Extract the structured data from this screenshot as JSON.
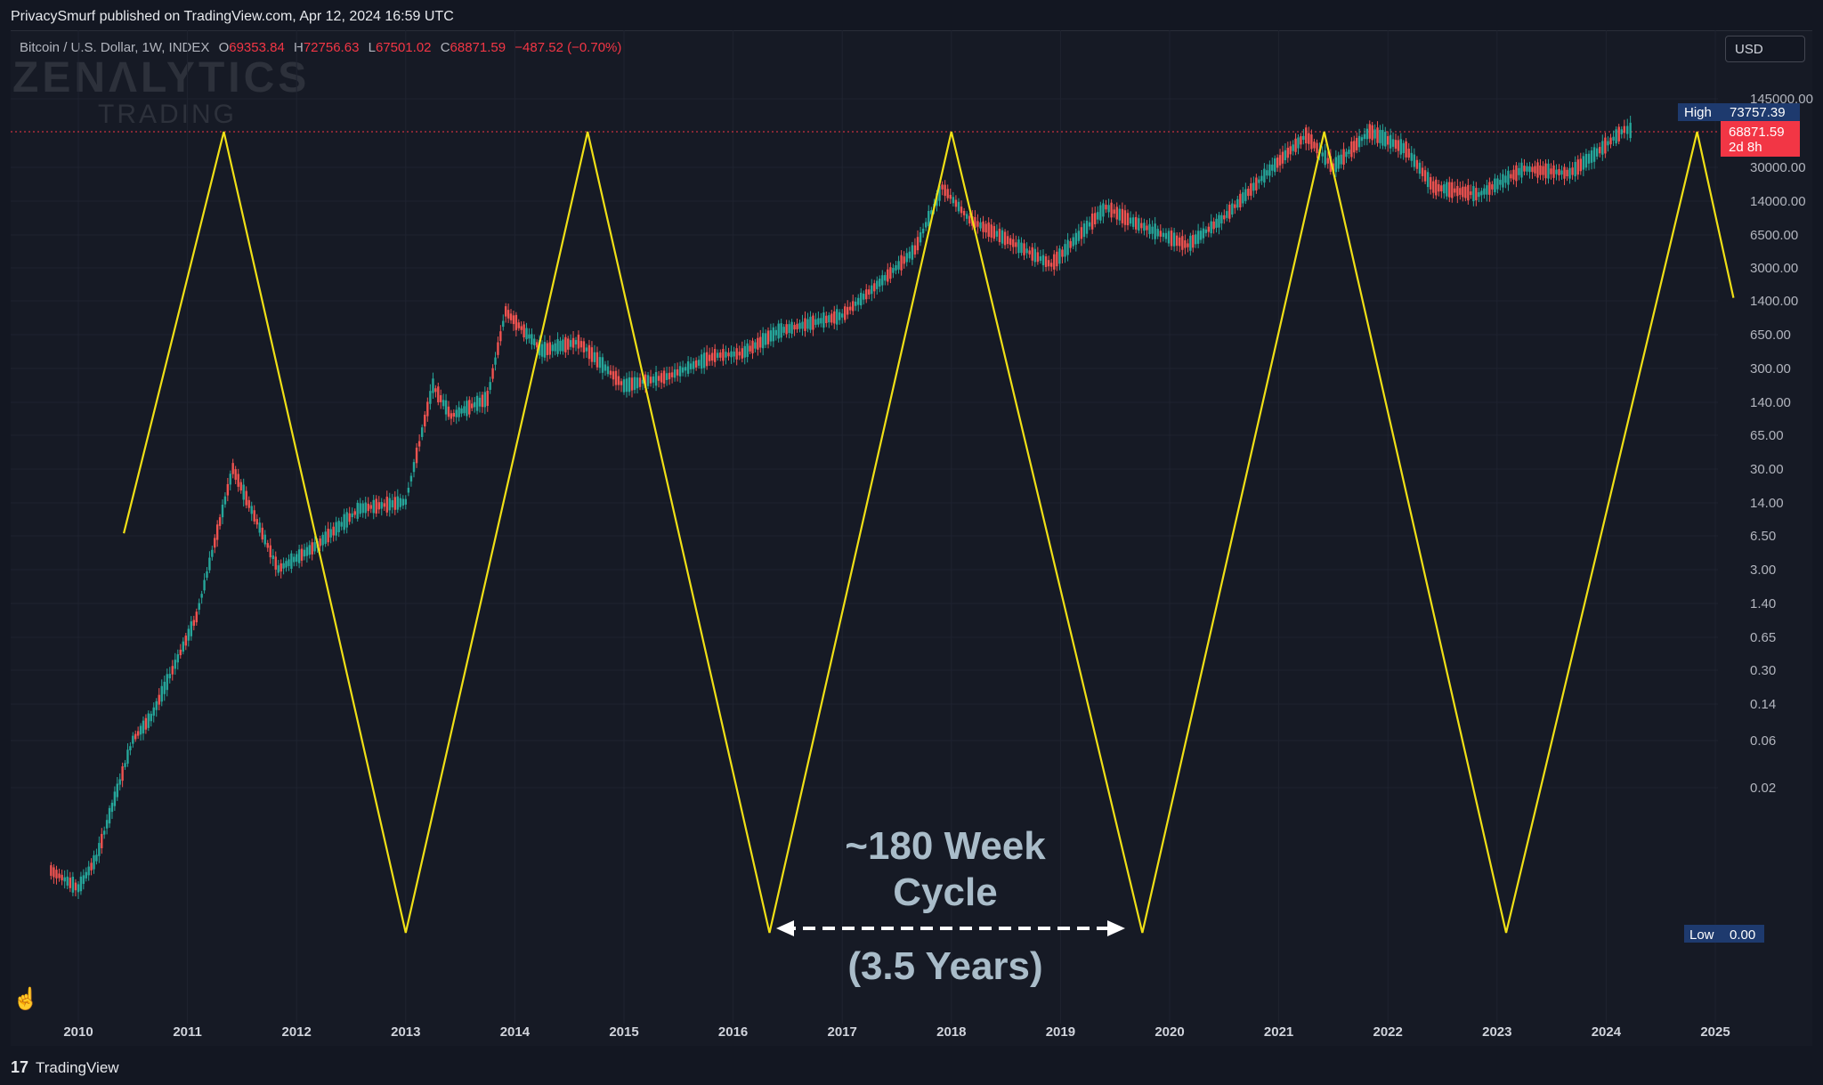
{
  "header": {
    "published": "PrivacySmurf published on TradingView.com, Apr 12, 2024 16:59 UTC"
  },
  "legend": {
    "symbol": "Bitcoin / U.S. Dollar, 1W, INDEX",
    "o_label": "O",
    "o_value": "69353.84",
    "h_label": "H",
    "h_value": "72756.63",
    "l_label": "L",
    "l_value": "67501.02",
    "c_label": "C",
    "c_value": "68871.59",
    "change": "−487.52 (−0.70%)"
  },
  "currency_button": "USD",
  "watermark": {
    "line1": "ZENΛLYTICS",
    "line2": "TRADING"
  },
  "price_axis": {
    "labels": [
      "145000.00",
      "30000.00",
      "14000.00",
      "6500.00",
      "3000.00",
      "1400.00",
      "650.00",
      "300.00",
      "140.00",
      "65.00",
      "30.00",
      "14.00",
      "6.50",
      "3.00",
      "1.40",
      "0.65",
      "0.30",
      "0.14",
      "0.06",
      "0.02"
    ],
    "high_label": "High",
    "high_value": "73757.39",
    "last_price": "68871.59",
    "countdown": "2d 8h",
    "low_label": "Low",
    "low_value": "0.00"
  },
  "annotations": {
    "cycle_title_line1": "~180 Week",
    "cycle_title_line2": "Cycle",
    "cycle_years": "(3.5 Years)"
  },
  "footer": {
    "logo": "17",
    "brand": "TradingView"
  },
  "colors": {
    "background": "#131722",
    "cycle_line": "#f0e016",
    "up": "#26a69a",
    "down": "#ef5350",
    "last_price_badge": "#f23645",
    "high_low_badge": "#1e3a6e",
    "annotation_text": "#a9bcc9"
  },
  "chart_data": {
    "type": "line",
    "yscale": "log",
    "x_axis_labels": [
      "2010",
      "2011",
      "2012",
      "2013",
      "2014",
      "2015",
      "2016",
      "2017",
      "2018",
      "2019",
      "2020",
      "2021",
      "2022",
      "2023",
      "2024",
      "2025"
    ],
    "series": [
      {
        "kind": "price",
        "x": [
          "2009-10",
          "2010-01",
          "2010-03",
          "2010-07",
          "2010-09",
          "2011-02",
          "2011-06",
          "2011-11",
          "2012-03",
          "2012-08",
          "2013-01",
          "2013-04",
          "2013-06",
          "2013-10",
          "2013-12",
          "2014-04",
          "2014-08",
          "2015-01",
          "2015-06",
          "2015-11",
          "2016-02",
          "2016-06",
          "2017-01",
          "2017-06",
          "2017-09",
          "2017-12",
          "2018-03",
          "2018-06",
          "2018-12",
          "2019-06",
          "2019-09",
          "2020-03",
          "2020-07",
          "2020-12",
          "2021-04",
          "2021-07",
          "2021-11",
          "2022-03",
          "2022-06",
          "2022-11",
          "2023-04",
          "2023-09",
          "2023-12",
          "2024-03",
          "2024-04"
        ],
        "y": [
          0.003,
          0.002,
          0.004,
          0.06,
          0.1,
          1,
          30,
          3,
          5,
          12,
          14,
          200,
          100,
          150,
          1100,
          450,
          550,
          200,
          250,
          400,
          420,
          700,
          1000,
          2500,
          4500,
          19000,
          9000,
          6500,
          3200,
          12000,
          8500,
          5000,
          9500,
          28000,
          62000,
          30000,
          68000,
          45000,
          19000,
          16000,
          29000,
          26000,
          42000,
          71000,
          68871.59
        ]
      },
      {
        "kind": "cycle",
        "x": [
          "2010-06",
          "2011-05",
          "2013-01",
          "2014-09",
          "2016-05",
          "2018-01",
          "2019-10",
          "2021-06",
          "2023-02",
          "2024-11",
          "2025-03"
        ],
        "y": [
          6.8,
          73757.39,
          0,
          73757.39,
          0,
          73757.39,
          0,
          73757.39,
          0,
          73757.39,
          1500
        ]
      }
    ],
    "high": 73757.39,
    "low": 0.0,
    "last": 68871.59
  }
}
